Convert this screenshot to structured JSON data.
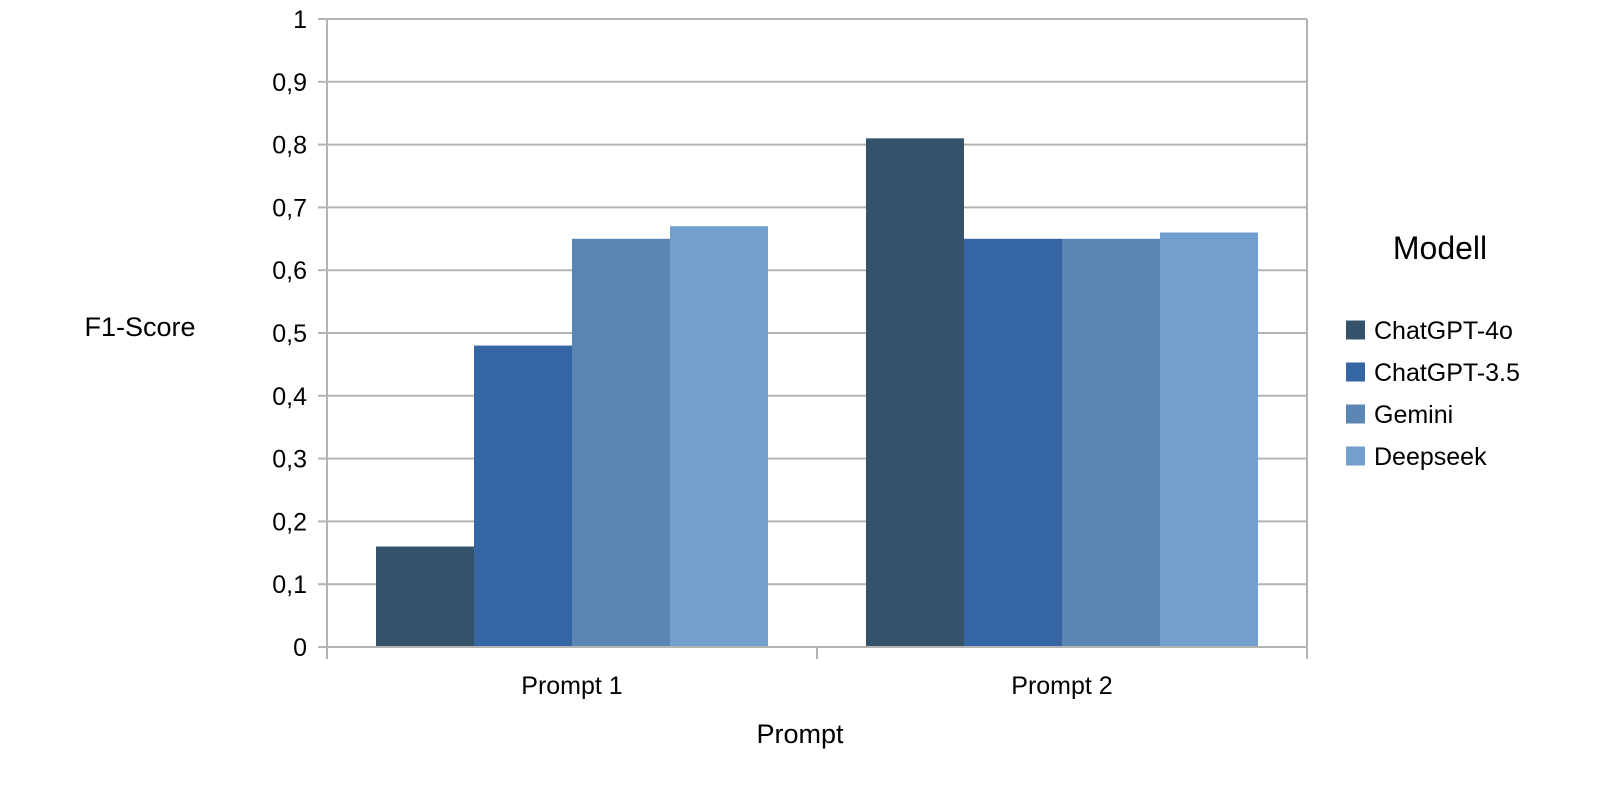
{
  "chart_data": {
    "type": "bar",
    "categories": [
      "Prompt 1",
      "Prompt 2"
    ],
    "series": [
      {
        "name": "ChatGPT-4o",
        "values": [
          0.16,
          0.81
        ],
        "color": "#34536B"
      },
      {
        "name": "ChatGPT-3.5",
        "values": [
          0.48,
          0.65
        ],
        "color": "#3566A3"
      },
      {
        "name": "Gemini",
        "values": [
          0.65,
          0.65
        ],
        "color": "#5B85B2"
      },
      {
        "name": "Deepseek",
        "values": [
          0.67,
          0.66
        ],
        "color": "#739FCF"
      }
    ],
    "xlabel": "Prompt",
    "ylabel": "F1-Score",
    "ylim": [
      0,
      1
    ],
    "yticks": [
      "0",
      "0,1",
      "0,2",
      "0,3",
      "0,4",
      "0,5",
      "0,6",
      "0,7",
      "0,8",
      "0,9",
      "1"
    ],
    "grid": true,
    "legend": {
      "title": "Modell",
      "position": "right"
    }
  }
}
